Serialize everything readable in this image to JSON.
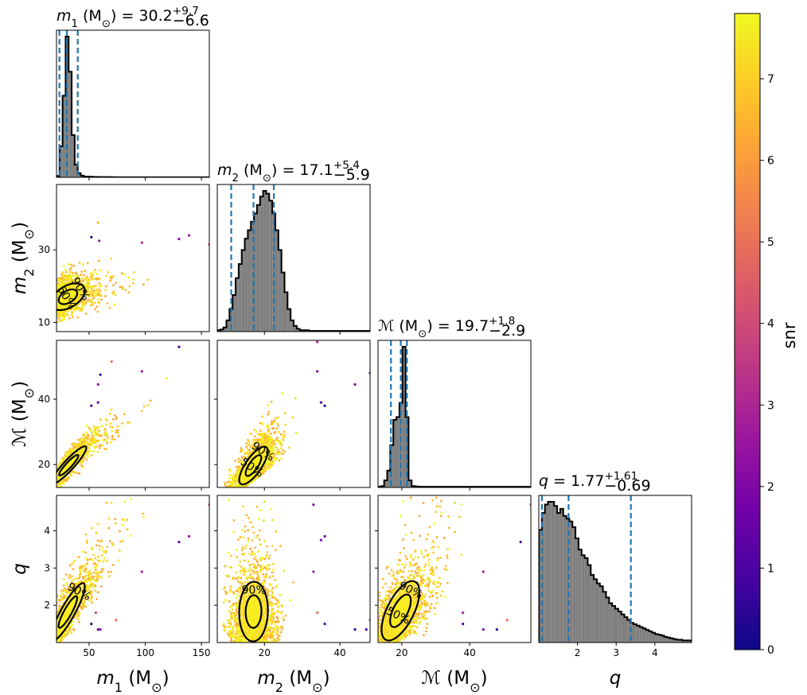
{
  "chart_data": {
    "type": "corner",
    "colorbar": {
      "label": "snr",
      "range": [
        0,
        7.8
      ],
      "ticks": [
        "0",
        "1",
        "2",
        "3",
        "4",
        "5",
        "6",
        "7"
      ],
      "colormap": [
        "#0d0887",
        "#46039f",
        "#7201a8",
        "#9c179e",
        "#bd3786",
        "#d8576b",
        "#ed7953",
        "#fb9f3a",
        "#fdca26",
        "#f0f921"
      ]
    },
    "params": [
      {
        "id": "m1",
        "label_main": "m",
        "label_sub": "1",
        "label_unit": " (M",
        "label_sun": "⊙",
        "label_close": ")",
        "range": [
          21,
          157
        ],
        "ticks": [
          50,
          100,
          150
        ],
        "tick_labels": [
          "50",
          "100",
          "150"
        ],
        "title_value": "= 30.2",
        "title_plus": "+9.7",
        "title_minus": "−6.6",
        "quantiles": [
          23.6,
          30.2,
          39.9
        ],
        "hist_start": 21,
        "hist_bin": 2.7,
        "hist": [
          1,
          22,
          58,
          100,
          75,
          30,
          9,
          3,
          1.2,
          0.6,
          0.5,
          0.4,
          0.3,
          0.3,
          0.2,
          0.2,
          0.2,
          0.2,
          0.15,
          0.15,
          0.1,
          0.1,
          0.1,
          0.1,
          0.1,
          0.1,
          0.1,
          0.1,
          0.1,
          0.1,
          0.1,
          0.1,
          0.1,
          0.1,
          0.1,
          0.1,
          0.1,
          0.1,
          0.1,
          0.1,
          0.1,
          0.1,
          0.1,
          0.1,
          0.1,
          0.1,
          0.1,
          0.1,
          0.1,
          0.1
        ]
      },
      {
        "id": "m2",
        "label_main": "m",
        "label_sub": "2",
        "label_unit": " (M",
        "label_sun": "⊙",
        "label_close": ")",
        "range": [
          7.5,
          48
        ],
        "ticks": [
          10,
          30
        ],
        "tick_labels": [
          "10",
          "30"
        ],
        "xticks": [
          20,
          40
        ],
        "xtick_labels": [
          "20",
          "40"
        ],
        "title_value": "= 17.1",
        "title_plus": "+5.4",
        "title_minus": "−5.9",
        "quantiles": [
          11.2,
          17.1,
          22.5
        ],
        "hist_start": 7.5,
        "hist_bin": 0.81,
        "hist": [
          1,
          1.5,
          3,
          8,
          16,
          26,
          38,
          48,
          58,
          66,
          72,
          78,
          84,
          90,
          96,
          100,
          98,
          93,
          84,
          72,
          58,
          42,
          28,
          16,
          8,
          4,
          2,
          1,
          1,
          1,
          0.5,
          0.5,
          0.5,
          0.5,
          0.5,
          0.5,
          0.5,
          0.5,
          0.5,
          0.5,
          0.5,
          0.5,
          0.5,
          0.5,
          0.5,
          0.5,
          0.5,
          0.5,
          0.5,
          0.5
        ]
      },
      {
        "id": "mc",
        "label_main": "ℳ",
        "label_sub": "",
        "label_unit": " (M",
        "label_sun": "⊙",
        "label_close": ")",
        "range": [
          13,
          58
        ],
        "ticks": [
          20,
          40
        ],
        "tick_labels": [
          "20",
          "40"
        ],
        "title_value": "= 19.7",
        "title_plus": "+1.8",
        "title_minus": "−2.9",
        "quantiles": [
          16.8,
          19.7,
          21.5
        ],
        "hist_start": 13,
        "hist_bin": 0.9,
        "hist": [
          0.5,
          1,
          5,
          12,
          30,
          48,
          50,
          60,
          100,
          50,
          5,
          1,
          0.8,
          0.6,
          0.5,
          0.5,
          0.5,
          0.5,
          0.5,
          0.5,
          0.5,
          0.5,
          0.5,
          0.5,
          0.5,
          0.5,
          0.5,
          0.5,
          0.5,
          0.5,
          0.5,
          0.5,
          0.5,
          0.5,
          0.5,
          0.5,
          0.5,
          0.5,
          0.5,
          0.5,
          0.5,
          0.5,
          0.5,
          0.5,
          0.5,
          0.5,
          0.5,
          0.5,
          0.5,
          0.5
        ]
      },
      {
        "id": "q",
        "label_main": "q",
        "label_sub": "",
        "label_unit": "",
        "label_sun": "",
        "label_close": "",
        "range": [
          1,
          4.95
        ],
        "ticks": [
          2,
          3,
          4
        ],
        "tick_labels": [
          "2",
          "3",
          "4"
        ],
        "title_value": "= 1.77",
        "title_plus": "+1.61",
        "title_minus": "−0.69",
        "quantiles": [
          1.08,
          1.77,
          3.38
        ],
        "hist_start": 1,
        "hist_bin": 0.079,
        "hist": [
          80,
          92,
          98,
          100,
          100,
          97,
          92,
          95,
          90,
          88,
          86,
          82,
          74,
          66,
          62,
          60,
          55,
          48,
          45,
          42,
          40,
          36,
          32,
          28,
          26,
          24,
          22,
          20,
          18,
          16,
          14,
          13,
          12,
          11,
          10,
          9,
          8,
          7,
          6,
          5.5,
          5,
          4,
          3.5,
          3,
          2.5,
          2,
          2,
          1.5,
          1.5,
          1.5
        ]
      }
    ],
    "contour_labels": {
      "m2_m1": [
        "90%",
        "50%"
      ],
      "mc_m2": [
        "90%",
        "50%"
      ],
      "q_m1": [
        "90%"
      ],
      "q_m2": [
        "90%"
      ],
      "q_mc": [
        "90%",
        "50%"
      ]
    },
    "outliers": {
      "m2_m1": [
        [
          52,
          33.5,
          0.3
        ],
        [
          58,
          37.5,
          6.5
        ],
        [
          59,
          32.5,
          2.5
        ],
        [
          97,
          32,
          3
        ],
        [
          130,
          33,
          2
        ],
        [
          139,
          34,
          2.5
        ],
        [
          157,
          31.5,
          4
        ]
      ],
      "mc_m1": [
        [
          52,
          38,
          1
        ],
        [
          58,
          39,
          1.5
        ],
        [
          58,
          44.5,
          2.5
        ],
        [
          60,
          47.5,
          0.5
        ],
        [
          70,
          51.5,
          5
        ],
        [
          97,
          48.5,
          2.5
        ],
        [
          130,
          56,
          1
        ]
      ],
      "mc_m2": [
        [
          34,
          48.5,
          2
        ],
        [
          35,
          39,
          1
        ],
        [
          36,
          38,
          0.5
        ],
        [
          44,
          44.5,
          2
        ],
        [
          48,
          48,
          1
        ],
        [
          34,
          57.5,
          3
        ]
      ],
      "q_m1": [
        [
          52,
          1.5,
          0.3
        ],
        [
          56,
          1.8,
          4
        ],
        [
          58,
          1.35,
          1
        ],
        [
          60,
          1.35,
          2
        ],
        [
          74,
          1.6,
          5
        ],
        [
          97,
          2.9,
          3
        ],
        [
          130,
          3.7,
          1.5
        ],
        [
          139,
          3.85,
          2.5
        ],
        [
          157,
          4.7,
          4
        ]
      ],
      "q_m2": [
        [
          33,
          4.7,
          2
        ],
        [
          33,
          2.9,
          3
        ],
        [
          34,
          1.8,
          5
        ],
        [
          35,
          3.75,
          2
        ],
        [
          36,
          3.85,
          1.5
        ],
        [
          36,
          1.5,
          1
        ],
        [
          44,
          1.35,
          0.5
        ],
        [
          47,
          1.35,
          1
        ],
        [
          48,
          1.6,
          4
        ]
      ],
      "q_mc": [
        [
          38,
          1.8,
          3
        ],
        [
          38,
          1.5,
          1
        ],
        [
          44,
          2.9,
          3
        ],
        [
          44,
          1.35,
          2
        ],
        [
          48,
          1.35,
          0.5
        ],
        [
          51,
          1.6,
          5
        ],
        [
          55,
          3.7,
          1
        ],
        [
          58,
          4.7,
          4
        ]
      ]
    }
  }
}
